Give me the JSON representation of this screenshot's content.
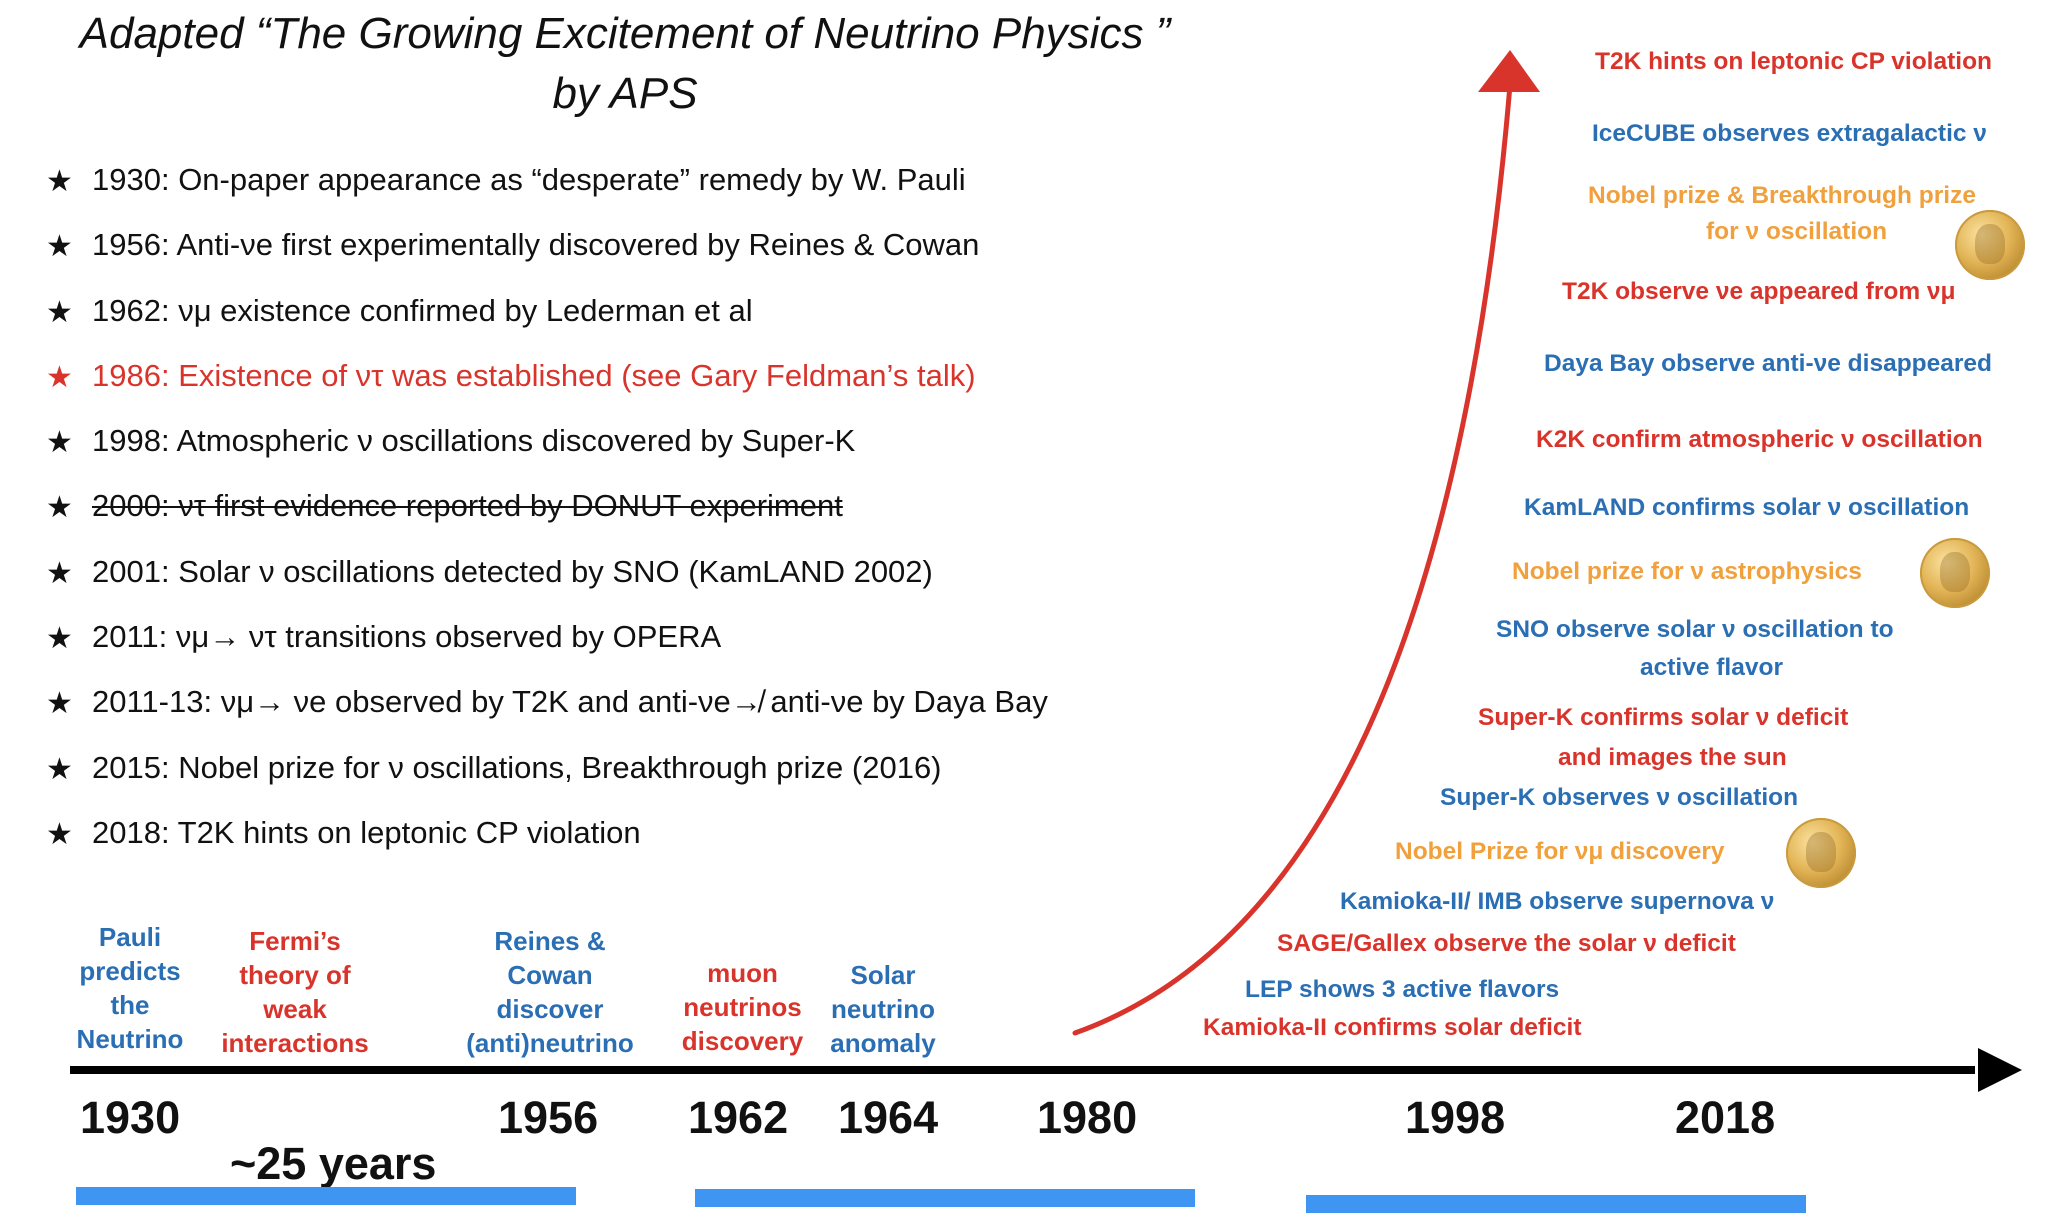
{
  "title": {
    "line1": "Adapted “The Growing Excitement of Neutrino Physics ”",
    "line2": "by APS"
  },
  "milestones": [
    {
      "star": "★",
      "text": "1930: On-paper appearance as “desperate” remedy by W. Pauli"
    },
    {
      "star": "★",
      "text": "1956: Anti-νe first experimentally discovered by Reines & Cowan"
    },
    {
      "star": "★",
      "text": "1962: νμ existence confirmed by Lederman et al"
    },
    {
      "star": "★",
      "text": "1986: Existence of ντ was established (see Gary Feldman’s talk)"
    },
    {
      "star": "★",
      "text": "1998: Atmospheric ν oscillations discovered by Super-K"
    },
    {
      "star": "★",
      "text": "2000: ντ first evidence reported by DONUT experiment"
    },
    {
      "star": "★",
      "text": "2001: Solar ν oscillations detected by SNO (KamLAND 2002)"
    },
    {
      "star": "★",
      "text": "2011: νμ→ ντ transitions observed by OPERA"
    },
    {
      "star": "★",
      "text": "2011-13: νμ→ νe observed by T2K and anti-νe↛ anti-νe by Daya Bay"
    },
    {
      "star": "★",
      "text": "2015: Nobel prize for ν oscillations, Breakthrough prize (2016)"
    },
    {
      "star": "★",
      "text": "2018: T2K hints on leptonic CP violation"
    }
  ],
  "timeline_events": {
    "pauli": "Pauli predicts the Neutrino",
    "fermi": "Fermi’s theory of weak interactions",
    "reines": "Reines & Cowan discover (anti)neutrino",
    "muon": "muon neutrinos discovery",
    "solar": "Solar neutrino anomaly"
  },
  "years": [
    "1930",
    "1956",
    "1962",
    "1964",
    "1980",
    "1998",
    "2018"
  ],
  "gap_label": "~25 years",
  "recent_events": [
    {
      "text": "T2K hints on leptonic CP violation",
      "color": "red"
    },
    {
      "text": "IceCUBE observes extragalactic ν",
      "color": "blue"
    },
    {
      "text": "Nobel prize & Breakthrough prize",
      "color": "orange"
    },
    {
      "text": "for ν oscillation",
      "color": "orange"
    },
    {
      "text": "T2K observe νe appeared from νμ",
      "color": "red"
    },
    {
      "text": "Daya Bay observe anti-νe disappeared",
      "color": "blue"
    },
    {
      "text": "K2K confirm atmospheric ν oscillation",
      "color": "red"
    },
    {
      "text": "KamLAND confirms solar ν oscillation",
      "color": "blue"
    },
    {
      "text": "Nobel prize for ν astrophysics",
      "color": "orange"
    },
    {
      "text": "SNO observe solar ν oscillation to",
      "color": "blue"
    },
    {
      "text": "active flavor",
      "color": "blue"
    },
    {
      "text": "Super-K confirms solar ν deficit",
      "color": "red"
    },
    {
      "text": "and images the sun",
      "color": "red"
    },
    {
      "text": "Super-K observes ν oscillation",
      "color": "blue"
    },
    {
      "text": "Nobel Prize for νμ discovery",
      "color": "orange"
    },
    {
      "text": "Kamioka-II/ IMB observe supernova ν",
      "color": "blue"
    },
    {
      "text": "SAGE/Gallex observe the solar ν deficit",
      "color": "red"
    },
    {
      "text": "LEP shows 3 active flavors",
      "color": "blue"
    },
    {
      "text": "Kamioka-II confirms solar deficit",
      "color": "red"
    }
  ],
  "colors": {
    "red": "#d9342b",
    "blue": "#2a6eb4",
    "orange": "#f0a03c",
    "bar": "#3f95f2",
    "axis": "#000000"
  }
}
